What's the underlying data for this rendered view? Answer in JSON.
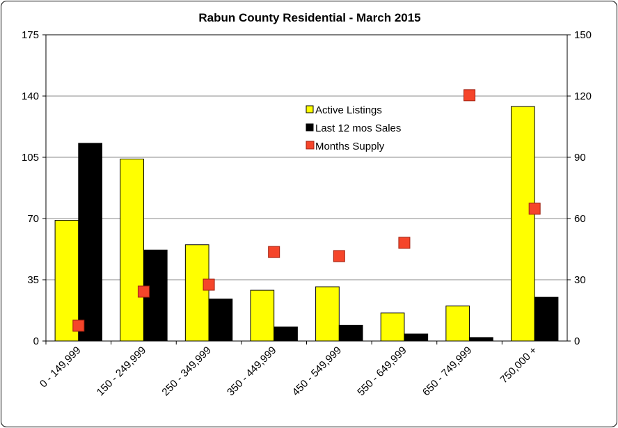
{
  "chart_data": {
    "type": "bar",
    "title": "Rabun County Residential - March 2015",
    "categories": [
      "0 - 149,999",
      "150 - 249,999",
      "250 - 349,999",
      "350 - 449,999",
      "450 - 549,999",
      "550 - 649,999",
      "650 - 749,999",
      "750,000 +"
    ],
    "series": [
      {
        "name": "Active Listings",
        "color": "#ffff00",
        "values": [
          69,
          104,
          55,
          29,
          31,
          16,
          20,
          134
        ]
      },
      {
        "name": "Last 12 mos Sales",
        "color": "#000000",
        "values": [
          113,
          52,
          24,
          8,
          9,
          4,
          2,
          25
        ]
      },
      {
        "name": "Months Supply",
        "color": "#f5452a",
        "type": "scatter",
        "axis": "y2",
        "values": [
          7.5,
          24.2,
          27.6,
          43.6,
          41.6,
          48.1,
          120.4,
          64.8
        ]
      }
    ],
    "ylim": [
      0,
      175
    ],
    "yticks": [
      0,
      35,
      70,
      105,
      140,
      175
    ],
    "y2lim": [
      0,
      150
    ],
    "y2ticks": [
      0,
      30,
      60,
      90,
      120,
      150
    ],
    "grid": true
  }
}
